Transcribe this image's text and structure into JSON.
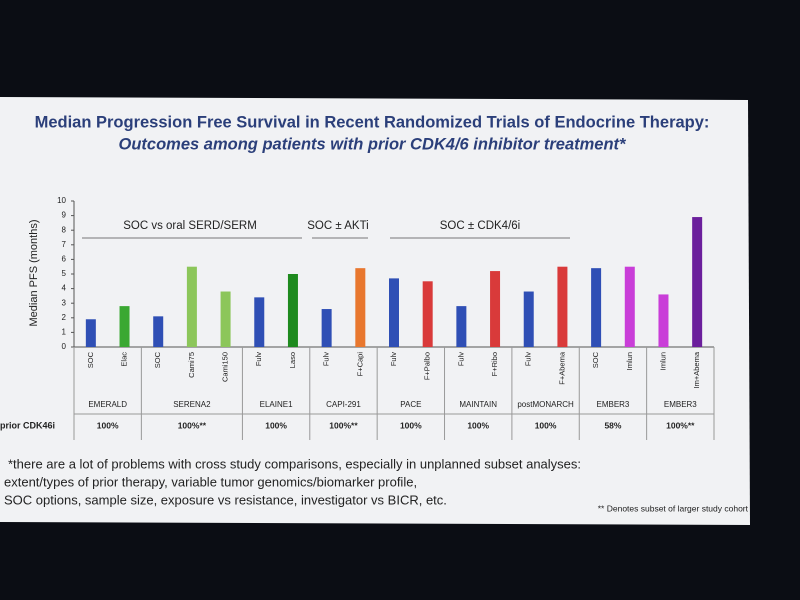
{
  "chart_data": {
    "type": "bar",
    "title": "Median Progression Free Survival in Recent Randomized Trials of Endocrine Therapy:",
    "subtitle": "Outcomes among patients with prior CDK4/6 inhibitor treatment*",
    "y_label": "Median PFS (months)",
    "ylim": [
      0,
      10
    ],
    "yticks": [
      0,
      1,
      2,
      3,
      4,
      5,
      6,
      7,
      8,
      9,
      10
    ],
    "annotations": [
      "SOC vs oral SERD/SERM",
      "SOC ± AKTi",
      "SOC ± CDK4/6i"
    ],
    "row_label": "prior CDK46i",
    "groups": [
      {
        "name": "EMERALD",
        "prior": "100%",
        "bars": [
          {
            "label": "SOC",
            "value": 1.9,
            "color": "#2f4fb5"
          },
          {
            "label": "Elac",
            "value": 2.8,
            "color": "#3aa832"
          }
        ]
      },
      {
        "name": "SERENA2",
        "prior": "100%**",
        "bars": [
          {
            "label": "SOC",
            "value": 2.1,
            "color": "#2f4fb5"
          },
          {
            "label": "Cami75",
            "value": 5.5,
            "color": "#8cc65a"
          },
          {
            "label": "Cami150",
            "value": 3.8,
            "color": "#8cc65a"
          }
        ]
      },
      {
        "name": "ELAINE1",
        "prior": "100%",
        "bars": [
          {
            "label": "Fulv",
            "value": 3.4,
            "color": "#2f4fb5"
          },
          {
            "label": "Laso",
            "value": 5.0,
            "color": "#1e8a1e"
          }
        ]
      },
      {
        "name": "CAPI-291",
        "prior": "100%**",
        "bars": [
          {
            "label": "Fulv",
            "value": 2.6,
            "color": "#2f4fb5"
          },
          {
            "label": "F+Capi",
            "value": 5.4,
            "color": "#e8772e"
          }
        ]
      },
      {
        "name": "PACE",
        "prior": "100%",
        "bars": [
          {
            "label": "Fulv",
            "value": 4.7,
            "color": "#2f4fb5"
          },
          {
            "label": "F+Palbo",
            "value": 4.5,
            "color": "#d93a3a"
          }
        ]
      },
      {
        "name": "MAINTAIN",
        "prior": "100%",
        "bars": [
          {
            "label": "Fulv",
            "value": 2.8,
            "color": "#2f4fb5"
          },
          {
            "label": "F+Ribo",
            "value": 5.2,
            "color": "#d93a3a"
          }
        ]
      },
      {
        "name": "postMONARCH",
        "prior": "100%",
        "bars": [
          {
            "label": "Fulv",
            "value": 3.8,
            "color": "#2f4fb5"
          },
          {
            "label": "F+Abema",
            "value": 5.5,
            "color": "#d93a3a"
          }
        ]
      },
      {
        "name": "EMBER3",
        "prior": "58%",
        "bars": [
          {
            "label": "SOC",
            "value": 5.4,
            "color": "#2f4fb5"
          },
          {
            "label": "Imlun",
            "value": 5.5,
            "color": "#c93ed8"
          }
        ]
      },
      {
        "name": "EMBER3",
        "prior": "100%**",
        "bars": [
          {
            "label": "Imlun",
            "value": 3.6,
            "color": "#c93ed8"
          },
          {
            "label": "Im+Abema",
            "value": 8.9,
            "color": "#6b1f9c"
          }
        ]
      }
    ],
    "footnotes": [
      "*there are a lot of problems with cross study comparisons, especially in unplanned subset analyses:",
      "extent/types of prior therapy, variable tumor genomics/biomarker profile,",
      "SOC options, sample size, exposure vs resistance, investigator vs BICR, etc."
    ],
    "source_note": "** Denotes subset of larger study cohort"
  }
}
